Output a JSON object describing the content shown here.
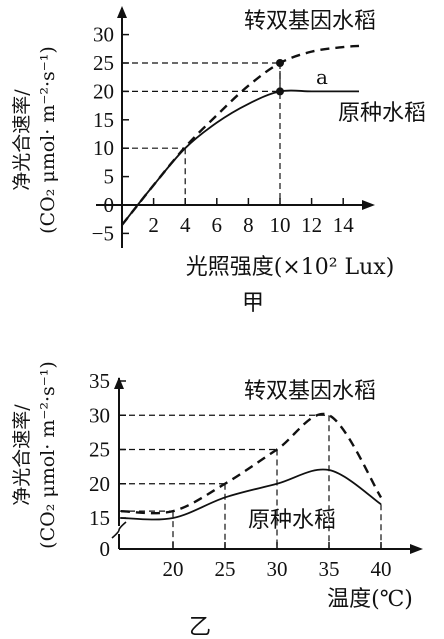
{
  "chart_data": [
    {
      "type": "line",
      "panel_label": "甲",
      "xlabel": "光照强度(×10² Lux)",
      "ylabel_line1": "净光合速率/",
      "ylabel_line2": "(CO₂ μmol· m⁻²·s⁻¹)",
      "x_ticks": [
        "2",
        "4",
        "6",
        "8",
        "10",
        "12",
        "14"
      ],
      "y_ticks": [
        "−5",
        "0",
        "5",
        "10",
        "15",
        "20",
        "25",
        "30"
      ],
      "xlim": [
        0,
        15
      ],
      "ylim": [
        -5,
        32
      ],
      "series": [
        {
          "name": "转双基因水稻",
          "style": "dashed",
          "x": [
            0,
            2,
            4,
            6,
            8,
            10,
            12,
            14,
            15
          ],
          "y": [
            -3.5,
            3.5,
            10.2,
            15.8,
            21,
            25,
            27,
            27.8,
            28
          ]
        },
        {
          "name": "原种水稻",
          "style": "solid",
          "x": [
            0,
            2,
            4,
            6,
            8,
            10,
            12,
            14,
            15
          ],
          "y": [
            -3.5,
            3.5,
            10,
            14.5,
            17.8,
            20,
            20,
            20,
            20
          ]
        }
      ],
      "annotation": "a",
      "markers": [
        {
          "x": 10,
          "y": 25
        },
        {
          "x": 10,
          "y": 20
        }
      ]
    },
    {
      "type": "line",
      "panel_label": "乙",
      "xlabel": "温度(℃)",
      "ylabel_line1": "净光合速率/",
      "ylabel_line2": "(CO₂ μmol· m⁻²·s⁻¹)",
      "x_ticks": [
        "20",
        "25",
        "30",
        "35",
        "40"
      ],
      "y_ticks": [
        "0",
        "15",
        "20",
        "25",
        "30",
        "35"
      ],
      "xlim": [
        15,
        41
      ],
      "ylim": [
        15,
        37
      ],
      "axis_break": true,
      "series": [
        {
          "name": "转双基因水稻",
          "style": "dashed",
          "x": [
            15,
            20,
            25,
            30,
            35,
            40
          ],
          "y": [
            16,
            16,
            20,
            25,
            30,
            18
          ]
        },
        {
          "name": "原种水稻",
          "style": "solid",
          "x": [
            15,
            20,
            25,
            30,
            35,
            40
          ],
          "y": [
            15,
            15,
            18,
            20,
            22,
            17
          ]
        }
      ]
    }
  ]
}
